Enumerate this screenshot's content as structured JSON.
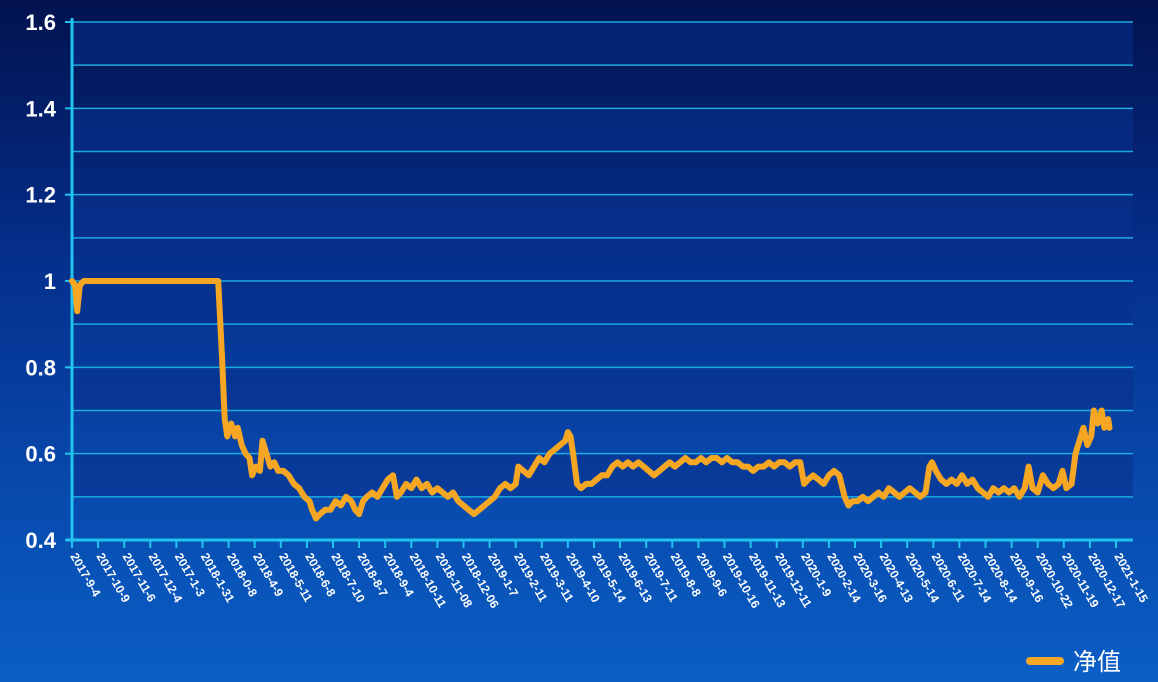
{
  "chart_data": {
    "type": "line",
    "title": "",
    "xlabel": "",
    "ylabel": "",
    "ylim": [
      0.4,
      1.6
    ],
    "yticks": [
      "0.4",
      "0.6",
      "0.8",
      "1",
      "1.2",
      "1.4",
      "1.6"
    ],
    "grid": true,
    "legend": {
      "position": "bottom-right"
    },
    "colors": {
      "line": "#f5a623",
      "grid": "#1fb8e8",
      "axis": "#21c4ee",
      "band": "#0a2f8c"
    },
    "x_tick_labels": [
      "2017-9-4",
      "2017-10-9",
      "2017-11-6",
      "2017-12-4",
      "2017-1-3",
      "2018-1-31",
      "2018-0-8",
      "2018-4-9",
      "2018-5-11",
      "2018-6-8",
      "2018-7-10",
      "2018-8-7",
      "2018-9-4",
      "2018-10-11",
      "2018-11-08",
      "2018-12-06",
      "2019-1-7",
      "2019-2-11",
      "2019-3-11",
      "2019-4-10",
      "2019-5-14",
      "2019-6-13",
      "2019-7-11",
      "2019-8-8",
      "2019-9-6",
      "2019-10-16",
      "2019-11-13",
      "2019-12-11",
      "2020-1-9",
      "2020-2-14",
      "2020-3-16",
      "2020-4-13",
      "2020-5-14",
      "2020-6-11",
      "2020-7-14",
      "2020-8-14",
      "2020-9-16",
      "2020-10-22",
      "2020-11-19",
      "2020-12-17",
      "2021-1-15"
    ],
    "series": [
      {
        "name": "净值",
        "points": [
          [
            0,
            1.0
          ],
          [
            0.12,
            0.99
          ],
          [
            0.2,
            0.93
          ],
          [
            0.3,
            0.99
          ],
          [
            0.45,
            1.0
          ],
          [
            1.5,
            1.0
          ],
          [
            3.0,
            1.0
          ],
          [
            4.5,
            1.0
          ],
          [
            5.6,
            1.0
          ],
          [
            5.75,
            0.82
          ],
          [
            5.85,
            0.68
          ],
          [
            5.95,
            0.64
          ],
          [
            6.1,
            0.67
          ],
          [
            6.25,
            0.64
          ],
          [
            6.35,
            0.66
          ],
          [
            6.5,
            0.62
          ],
          [
            6.65,
            0.6
          ],
          [
            6.8,
            0.59
          ],
          [
            6.9,
            0.55
          ],
          [
            7.05,
            0.57
          ],
          [
            7.2,
            0.56
          ],
          [
            7.3,
            0.63
          ],
          [
            7.45,
            0.6
          ],
          [
            7.6,
            0.57
          ],
          [
            7.75,
            0.58
          ],
          [
            7.9,
            0.56
          ],
          [
            8.1,
            0.56
          ],
          [
            8.3,
            0.55
          ],
          [
            8.5,
            0.53
          ],
          [
            8.7,
            0.52
          ],
          [
            8.9,
            0.5
          ],
          [
            9.1,
            0.49
          ],
          [
            9.2,
            0.47
          ],
          [
            9.35,
            0.45
          ],
          [
            9.5,
            0.46
          ],
          [
            9.7,
            0.47
          ],
          [
            9.9,
            0.47
          ],
          [
            10.1,
            0.49
          ],
          [
            10.3,
            0.48
          ],
          [
            10.5,
            0.5
          ],
          [
            10.7,
            0.49
          ],
          [
            10.85,
            0.47
          ],
          [
            11.0,
            0.46
          ],
          [
            11.15,
            0.49
          ],
          [
            11.3,
            0.5
          ],
          [
            11.5,
            0.51
          ],
          [
            11.7,
            0.5
          ],
          [
            11.9,
            0.52
          ],
          [
            12.1,
            0.54
          ],
          [
            12.3,
            0.55
          ],
          [
            12.45,
            0.5
          ],
          [
            12.6,
            0.51
          ],
          [
            12.8,
            0.53
          ],
          [
            13.0,
            0.52
          ],
          [
            13.2,
            0.54
          ],
          [
            13.4,
            0.52
          ],
          [
            13.6,
            0.53
          ],
          [
            13.8,
            0.51
          ],
          [
            14.0,
            0.52
          ],
          [
            14.2,
            0.51
          ],
          [
            14.4,
            0.5
          ],
          [
            14.6,
            0.51
          ],
          [
            14.8,
            0.49
          ],
          [
            15.0,
            0.48
          ],
          [
            15.2,
            0.47
          ],
          [
            15.4,
            0.46
          ],
          [
            15.6,
            0.47
          ],
          [
            15.8,
            0.48
          ],
          [
            16.0,
            0.49
          ],
          [
            16.2,
            0.5
          ],
          [
            16.4,
            0.52
          ],
          [
            16.6,
            0.53
          ],
          [
            16.8,
            0.52
          ],
          [
            17.0,
            0.53
          ],
          [
            17.1,
            0.57
          ],
          [
            17.3,
            0.56
          ],
          [
            17.5,
            0.55
          ],
          [
            17.7,
            0.57
          ],
          [
            17.9,
            0.59
          ],
          [
            18.1,
            0.58
          ],
          [
            18.3,
            0.6
          ],
          [
            18.5,
            0.61
          ],
          [
            18.7,
            0.62
          ],
          [
            18.9,
            0.63
          ],
          [
            19.0,
            0.65
          ],
          [
            19.1,
            0.64
          ],
          [
            19.2,
            0.6
          ],
          [
            19.35,
            0.53
          ],
          [
            19.5,
            0.52
          ],
          [
            19.7,
            0.53
          ],
          [
            19.9,
            0.53
          ],
          [
            20.1,
            0.54
          ],
          [
            20.3,
            0.55
          ],
          [
            20.5,
            0.55
          ],
          [
            20.7,
            0.57
          ],
          [
            20.9,
            0.58
          ],
          [
            21.1,
            0.57
          ],
          [
            21.3,
            0.58
          ],
          [
            21.5,
            0.57
          ],
          [
            21.7,
            0.58
          ],
          [
            21.9,
            0.57
          ],
          [
            22.1,
            0.56
          ],
          [
            22.3,
            0.55
          ],
          [
            22.5,
            0.56
          ],
          [
            22.7,
            0.57
          ],
          [
            22.9,
            0.58
          ],
          [
            23.1,
            0.57
          ],
          [
            23.3,
            0.58
          ],
          [
            23.5,
            0.59
          ],
          [
            23.7,
            0.58
          ],
          [
            23.9,
            0.58
          ],
          [
            24.1,
            0.59
          ],
          [
            24.3,
            0.58
          ],
          [
            24.5,
            0.59
          ],
          [
            24.7,
            0.59
          ],
          [
            24.9,
            0.58
          ],
          [
            25.1,
            0.59
          ],
          [
            25.3,
            0.58
          ],
          [
            25.5,
            0.58
          ],
          [
            25.7,
            0.57
          ],
          [
            25.9,
            0.57
          ],
          [
            26.1,
            0.56
          ],
          [
            26.3,
            0.57
          ],
          [
            26.5,
            0.57
          ],
          [
            26.7,
            0.58
          ],
          [
            26.9,
            0.57
          ],
          [
            27.1,
            0.58
          ],
          [
            27.3,
            0.58
          ],
          [
            27.5,
            0.57
          ],
          [
            27.7,
            0.58
          ],
          [
            27.9,
            0.58
          ],
          [
            28.05,
            0.53
          ],
          [
            28.2,
            0.54
          ],
          [
            28.4,
            0.55
          ],
          [
            28.6,
            0.54
          ],
          [
            28.8,
            0.53
          ],
          [
            29.0,
            0.55
          ],
          [
            29.2,
            0.56
          ],
          [
            29.4,
            0.55
          ],
          [
            29.6,
            0.5
          ],
          [
            29.75,
            0.48
          ],
          [
            29.9,
            0.49
          ],
          [
            30.1,
            0.49
          ],
          [
            30.3,
            0.5
          ],
          [
            30.5,
            0.49
          ],
          [
            30.7,
            0.5
          ],
          [
            30.9,
            0.51
          ],
          [
            31.1,
            0.5
          ],
          [
            31.3,
            0.52
          ],
          [
            31.5,
            0.51
          ],
          [
            31.7,
            0.5
          ],
          [
            31.9,
            0.51
          ],
          [
            32.1,
            0.52
          ],
          [
            32.3,
            0.51
          ],
          [
            32.5,
            0.5
          ],
          [
            32.7,
            0.51
          ],
          [
            32.85,
            0.57
          ],
          [
            32.95,
            0.58
          ],
          [
            33.1,
            0.56
          ],
          [
            33.3,
            0.54
          ],
          [
            33.5,
            0.53
          ],
          [
            33.7,
            0.54
          ],
          [
            33.9,
            0.53
          ],
          [
            34.1,
            0.55
          ],
          [
            34.3,
            0.53
          ],
          [
            34.5,
            0.54
          ],
          [
            34.7,
            0.52
          ],
          [
            34.9,
            0.51
          ],
          [
            35.1,
            0.5
          ],
          [
            35.3,
            0.52
          ],
          [
            35.5,
            0.51
          ],
          [
            35.7,
            0.52
          ],
          [
            35.9,
            0.51
          ],
          [
            36.1,
            0.52
          ],
          [
            36.3,
            0.5
          ],
          [
            36.5,
            0.52
          ],
          [
            36.65,
            0.57
          ],
          [
            36.8,
            0.52
          ],
          [
            37.0,
            0.51
          ],
          [
            37.2,
            0.55
          ],
          [
            37.4,
            0.53
          ],
          [
            37.6,
            0.52
          ],
          [
            37.8,
            0.53
          ],
          [
            37.95,
            0.56
          ],
          [
            38.1,
            0.52
          ],
          [
            38.3,
            0.53
          ],
          [
            38.45,
            0.6
          ],
          [
            38.6,
            0.63
          ],
          [
            38.75,
            0.66
          ],
          [
            38.9,
            0.62
          ],
          [
            39.05,
            0.64
          ],
          [
            39.15,
            0.7
          ],
          [
            39.3,
            0.67
          ],
          [
            39.45,
            0.7
          ],
          [
            39.55,
            0.66
          ],
          [
            39.7,
            0.68
          ],
          [
            39.75,
            0.66
          ]
        ]
      }
    ]
  }
}
